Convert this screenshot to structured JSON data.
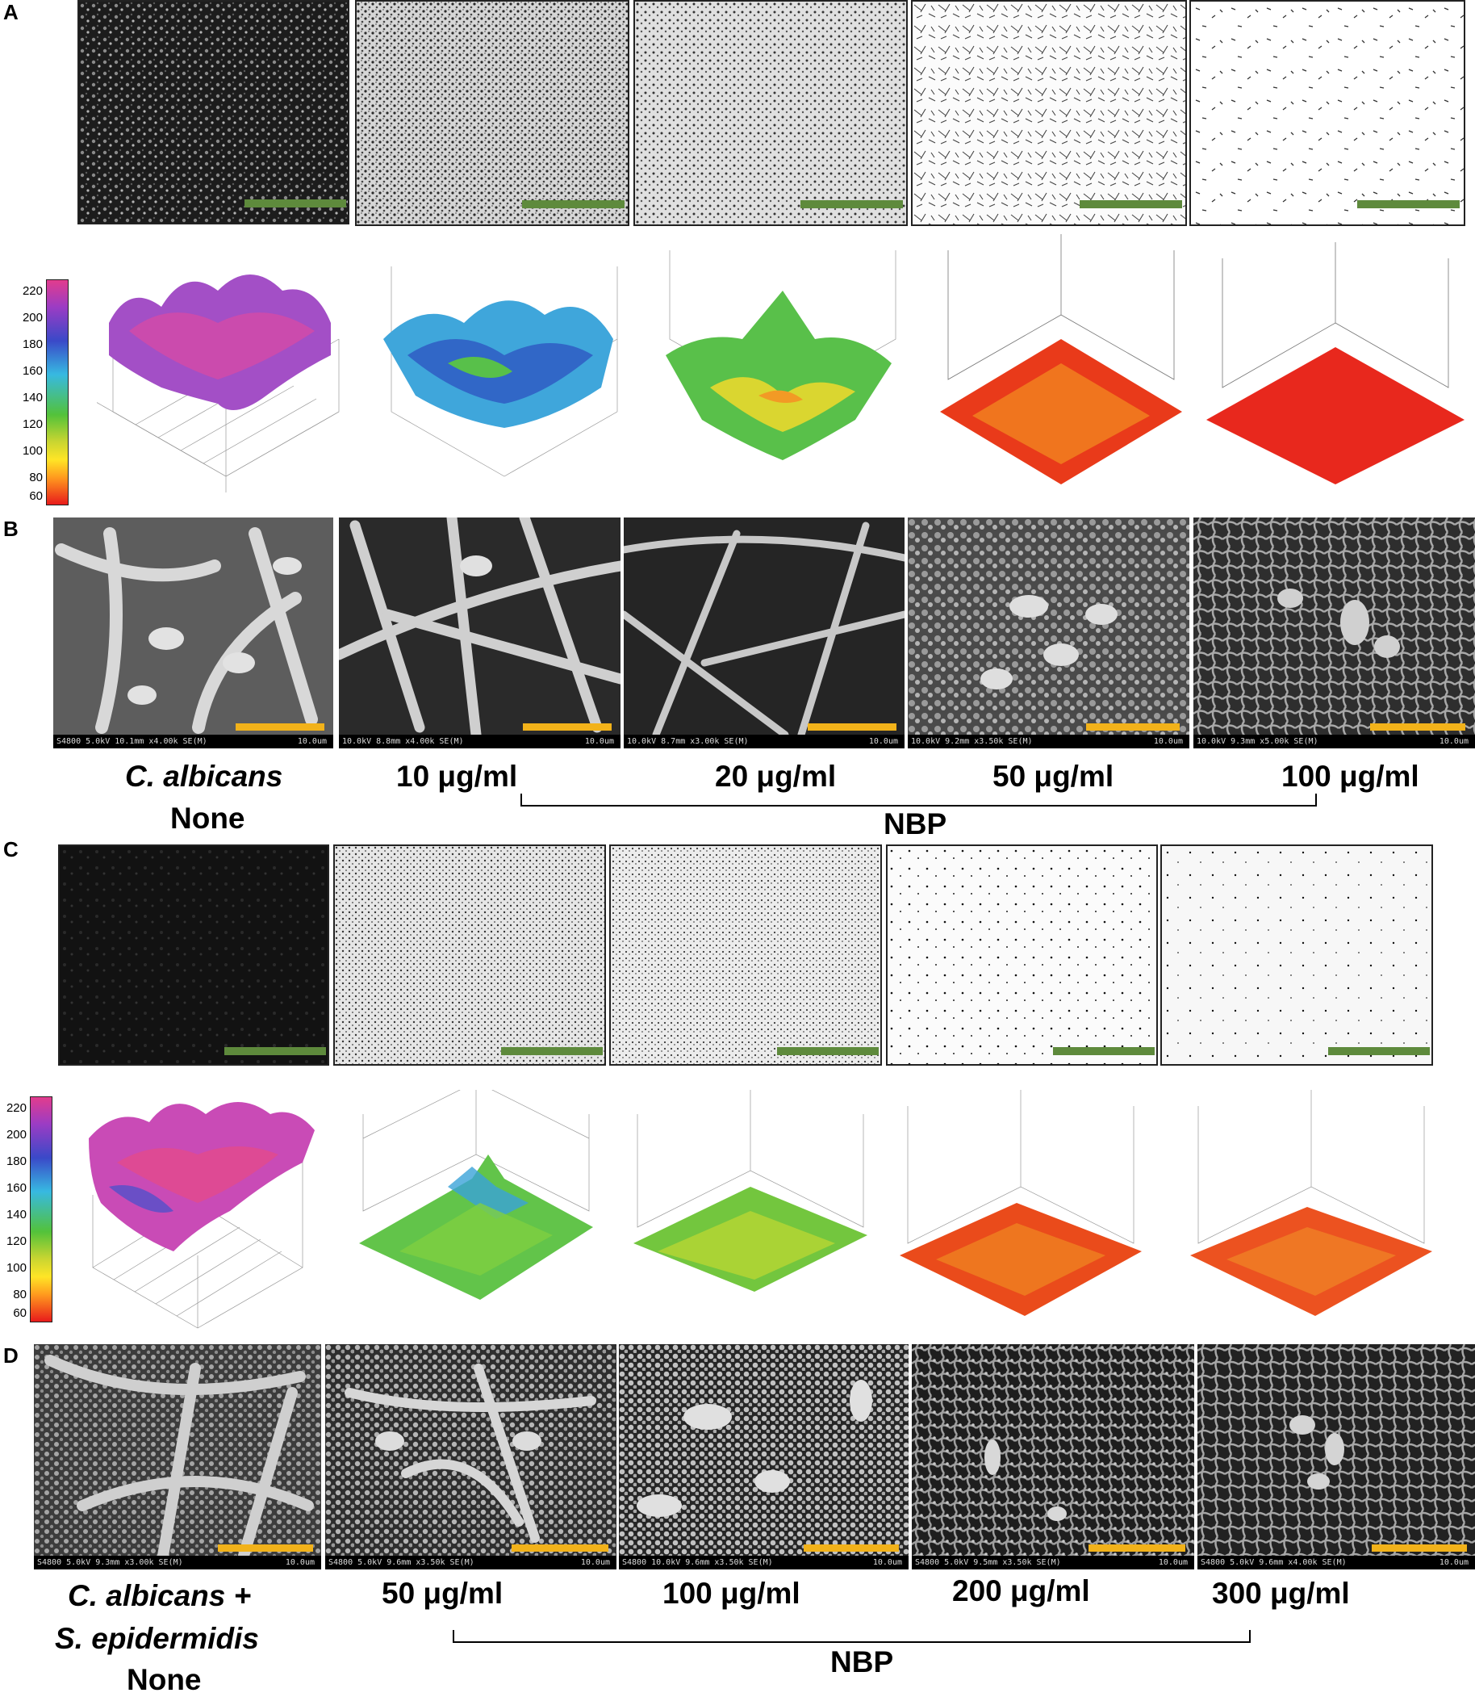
{
  "panels": {
    "a": "A",
    "b": "B",
    "c": "C",
    "d": "D"
  },
  "colorbar_ticks": [
    "220",
    "200",
    "180",
    "160",
    "140",
    "120",
    "100",
    "80",
    "60"
  ],
  "row_b_labels": {
    "control_species": "C. albicans",
    "control": "None",
    "conc": [
      "10 μg/ml",
      "20 μg/ml",
      "50 μg/ml",
      "100 μg/ml"
    ],
    "treatment": "NBP"
  },
  "row_d_labels": {
    "control_species_1": "C. albicans +",
    "control_species_2": "S. epidermidis",
    "control": "None",
    "conc": [
      "50 μg/ml",
      "100 μg/ml",
      "200 μg/ml",
      "300 μg/ml"
    ],
    "treatment": "NBP"
  },
  "sem_b": [
    {
      "info": "S4800 5.0kV 10.1mm x4.00k SE(M)",
      "scale": "10.0um"
    },
    {
      "info": "10.0kV 8.8mm x4.00k SE(M)",
      "scale": "10.0um"
    },
    {
      "info": "10.0kV 8.7mm x3.00k SE(M)",
      "scale": "10.0um"
    },
    {
      "info": "10.0kV 9.2mm x3.50k SE(M)",
      "scale": "10.0um"
    },
    {
      "info": "10.0kV 9.3mm x5.00k SE(M)",
      "scale": "10.0um"
    }
  ],
  "sem_d": [
    {
      "info": "S4800 5.0kV 9.3mm x3.00k SE(M)",
      "scale": "10.0um"
    },
    {
      "info": "S4800 5.0kV 9.6mm x3.50k SE(M)",
      "scale": "10.0um"
    },
    {
      "info": "S4800 10.0kV 9.6mm x3.50k SE(M)",
      "scale": "10.0um"
    },
    {
      "info": "S4800 5.0kV 9.5mm x3.50k SE(M)",
      "scale": "10.0um"
    },
    {
      "info": "S4800 5.0kV 9.6mm x4.00k SE(M)",
      "scale": "10.0um"
    }
  ],
  "colors": {
    "scale_bar_confocal": "#5e8a3c",
    "scale_bar_sem": "#f2b21a"
  }
}
